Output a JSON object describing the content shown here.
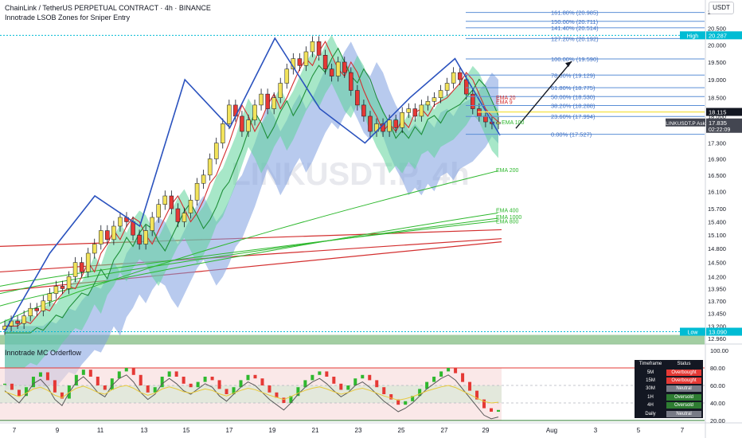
{
  "header": {
    "symbol_title": "ChainLink / TetherUS PERPETUAL CONTRACT · 4h · BINANCE",
    "indicator_title": "Innotrade LSOB Zones for Sniper Entry",
    "currency": "USDT",
    "watermark": "LINKUSDT.P, 4h"
  },
  "oscillator": {
    "title": "Innotrade MC Orderflow",
    "levels": [
      "100.00",
      "80.00",
      "60.00",
      "40.00",
      "20.00"
    ],
    "table_headers": [
      "Timeframe",
      "Status"
    ],
    "table_rows": [
      {
        "tf": "5M",
        "status": "Overbought",
        "color": "#e53935"
      },
      {
        "tf": "15M",
        "status": "Overbought",
        "color": "#e53935"
      },
      {
        "tf": "30M",
        "status": "Neutral",
        "color": "#787b86"
      },
      {
        "tf": "1H",
        "status": "Oversold",
        "color": "#2e7d32"
      },
      {
        "tf": "4H",
        "status": "Oversold",
        "color": "#2e7d32"
      },
      {
        "tf": "Daily",
        "status": "Neutral",
        "color": "#787b86"
      }
    ]
  },
  "price_axis": {
    "ticks": [
      "21.000",
      "20.500",
      "20.000",
      "19.500",
      "19.000",
      "18.500",
      "18.000",
      "17.300",
      "16.900",
      "16.500",
      "16.100",
      "15.700",
      "15.400",
      "15.100",
      "14.800",
      "14.500",
      "14.200",
      "13.950",
      "13.700",
      "13.450",
      "13.200",
      "12.960"
    ],
    "high_label": "High",
    "high_value": "20.287",
    "low_label": "Low",
    "low_value": "13.090",
    "yellow_value": "18.115",
    "last_label": "LINKUSDT.P Ask",
    "last_price": "17.835",
    "countdown": "02:22:09"
  },
  "time_axis": {
    "ticks": [
      "7",
      "9",
      "11",
      "13",
      "15",
      "17",
      "19",
      "21",
      "23",
      "25",
      "27",
      "29",
      "Aug",
      "3",
      "5",
      "7"
    ]
  },
  "fibonacci": {
    "levels": [
      {
        "ratio": "161.80%",
        "price": 20.985
      },
      {
        "ratio": "150.00%",
        "price": 20.711
      },
      {
        "ratio": "141.40%",
        "price": 20.514
      },
      {
        "ratio": "127.20%",
        "price": 20.192
      },
      {
        "ratio": "100.00%",
        "price": 19.59
      },
      {
        "ratio": "78.60%",
        "price": 19.129
      },
      {
        "ratio": "61.80%",
        "price": 18.775
      },
      {
        "ratio": "50.00%",
        "price": 18.53
      },
      {
        "ratio": "38.20%",
        "price": 18.288
      },
      {
        "ratio": "23.60%",
        "price": 17.994
      },
      {
        "ratio": "0.00%",
        "price": 17.527
      }
    ]
  },
  "ema_labels": [
    "EMA 20",
    "EMA 9",
    "EMA 100",
    "EMA 200",
    "EMA 400",
    "EMA 1000",
    "EMA 800"
  ],
  "colors": {
    "bull": "#f2e35b",
    "bear": "#e53935",
    "fib_line": "#5b8fd6",
    "zigzag": "#2a52be",
    "yellow_line": "#f5e663",
    "ema_green": "#2eb82e",
    "ema_red": "#d32f2f",
    "high_badge": "#00bcd4",
    "last_badge": "#434651"
  },
  "chart_data": {
    "type": "candlestick",
    "title": "ChainLink / TetherUS PERPETUAL CONTRACT · 4h · BINANCE",
    "timeframe": "4h",
    "x_ticks": [
      "7",
      "9",
      "11",
      "13",
      "15",
      "17",
      "19",
      "21",
      "23",
      "25",
      "27",
      "29",
      "Aug",
      "3",
      "5",
      "7"
    ],
    "y_range": [
      12.96,
      21.0
    ],
    "y_scale": "log",
    "candle_closes": [
      13.2,
      13.3,
      13.25,
      13.4,
      13.55,
      13.5,
      13.7,
      13.85,
      14.0,
      13.95,
      14.2,
      14.5,
      14.3,
      14.7,
      14.9,
      15.2,
      15.0,
      15.3,
      15.5,
      15.4,
      15.1,
      14.9,
      15.2,
      15.5,
      15.8,
      16.0,
      15.7,
      15.4,
      15.6,
      15.9,
      16.3,
      16.5,
      16.9,
      17.3,
      17.8,
      18.3,
      18.0,
      17.6,
      17.9,
      18.3,
      18.6,
      18.2,
      18.5,
      18.9,
      19.3,
      19.6,
      19.4,
      19.8,
      20.1,
      19.7,
      19.3,
      19.1,
      19.5,
      19.2,
      18.7,
      18.3,
      18.0,
      17.6,
      17.8,
      17.6,
      17.9,
      17.7,
      18.1,
      18.2,
      18.0,
      18.3,
      18.4,
      18.5,
      18.7,
      18.9,
      19.2,
      19.0,
      18.6,
      18.2,
      18.0,
      17.85,
      17.8,
      17.84
    ],
    "zigzag_pivots": [
      13.1,
      14.7,
      16.0,
      15.3,
      19.0,
      17.7,
      20.2,
      18.2,
      17.3,
      18.5,
      19.6,
      17.5
    ],
    "fib_levels": [
      20.985,
      20.711,
      20.514,
      20.192,
      19.59,
      19.129,
      18.775,
      18.53,
      18.288,
      17.994,
      17.527
    ],
    "ema_end_values": {
      "EMA 9": 18.4,
      "EMA 20": 18.5,
      "EMA 100": 17.85,
      "EMA 200": 16.6,
      "EMA 400": 15.6,
      "EMA 1000": 15.48,
      "EMA 800": 15.42
    },
    "horizontal_levels": {
      "high": 20.287,
      "low": 13.09,
      "yellow": 18.115,
      "last": 17.835
    },
    "oscillator_range": [
      20,
      100
    ],
    "oscillator_values": [
      62,
      55,
      48,
      58,
      70,
      75,
      66,
      52,
      45,
      60,
      72,
      78,
      70,
      60,
      55,
      68,
      76,
      80,
      72,
      60,
      52,
      58,
      70,
      76,
      70,
      62,
      58,
      64,
      70,
      66,
      56,
      50,
      58,
      66,
      72,
      68,
      60,
      52,
      46,
      40,
      48,
      58,
      66,
      72,
      76,
      70,
      62,
      55,
      60,
      68,
      72,
      66,
      58,
      50,
      44,
      38,
      42,
      48,
      56,
      64,
      70,
      76,
      80,
      74,
      64,
      54,
      44,
      34,
      30,
      32
    ]
  }
}
